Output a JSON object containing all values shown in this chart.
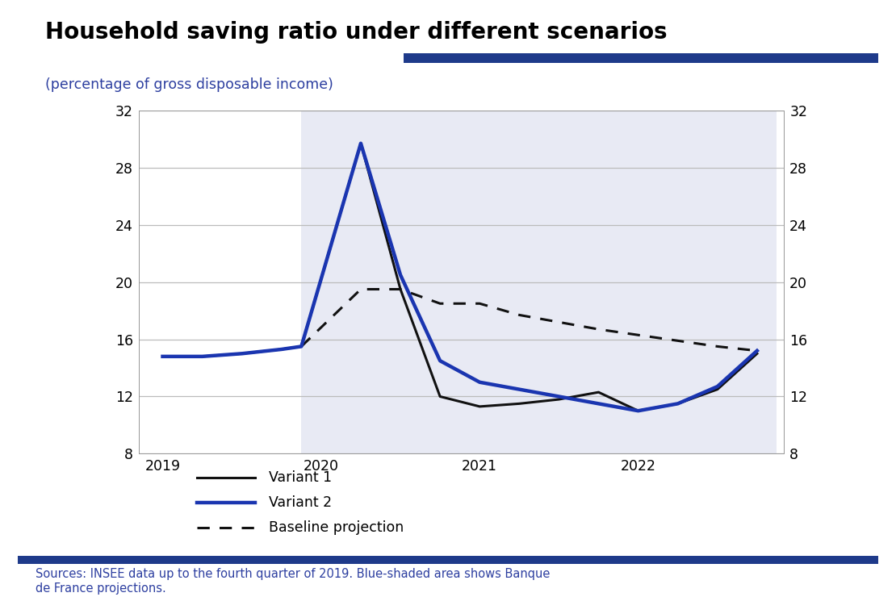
{
  "title": "Household saving ratio under different scenarios",
  "subtitle": "(percentage of gross disposable income)",
  "subtitle_color": "#2d3fa0",
  "title_color": "#000000",
  "source_text": "Sources: INSEE data up to the fourth quarter of 2019. Blue-shaded area shows Banque\nde France projections.",
  "source_color": "#2d3fa0",
  "accent_bar_color": "#1e3a8a",
  "bottom_bar_color": "#1e3a8a",
  "background_color": "#ffffff",
  "chart_bg_color": "#e8eaf4",
  "chart_bg_start": 2019.875,
  "chart_bg_end": 2022.875,
  "ylim": [
    8,
    32
  ],
  "yticks": [
    8,
    12,
    16,
    20,
    24,
    28,
    32
  ],
  "xlim": [
    2018.85,
    2022.92
  ],
  "xtick_positions": [
    2019.0,
    2020.0,
    2021.0,
    2022.0
  ],
  "xtick_labels": [
    "2019",
    "2020",
    "2021",
    "2022"
  ],
  "variant1_x": [
    2019.0,
    2019.25,
    2019.5,
    2019.75,
    2019.875,
    2020.25,
    2020.5,
    2020.75,
    2021.0,
    2021.25,
    2021.5,
    2021.75,
    2022.0,
    2022.25,
    2022.5,
    2022.75
  ],
  "variant1_y": [
    14.8,
    14.8,
    15.0,
    15.3,
    15.5,
    29.7,
    19.5,
    12.0,
    11.3,
    11.5,
    11.8,
    12.3,
    11.0,
    11.5,
    12.5,
    15.0
  ],
  "variant2_x": [
    2019.0,
    2019.25,
    2019.5,
    2019.75,
    2019.875,
    2020.25,
    2020.5,
    2020.75,
    2021.0,
    2021.25,
    2021.5,
    2021.75,
    2022.0,
    2022.25,
    2022.5,
    2022.75
  ],
  "variant2_y": [
    14.8,
    14.8,
    15.0,
    15.3,
    15.5,
    29.7,
    20.5,
    14.5,
    13.0,
    12.5,
    12.0,
    11.5,
    11.0,
    11.5,
    12.7,
    15.2
  ],
  "baseline_x": [
    2019.875,
    2020.25,
    2020.5,
    2020.75,
    2021.0,
    2021.25,
    2021.5,
    2021.75,
    2022.0,
    2022.25,
    2022.5,
    2022.75
  ],
  "baseline_y": [
    15.5,
    19.5,
    19.5,
    18.5,
    18.5,
    17.7,
    17.2,
    16.7,
    16.3,
    15.9,
    15.5,
    15.2
  ],
  "variant1_color": "#111111",
  "variant2_color": "#1a35b0",
  "baseline_color": "#111111",
  "variant1_lw": 2.2,
  "variant2_lw": 3.2,
  "baseline_lw": 2.2,
  "legend_labels": [
    "Variant 1",
    "Variant 2",
    "Baseline projection"
  ],
  "fig_width": 11.1,
  "fig_height": 7.4
}
